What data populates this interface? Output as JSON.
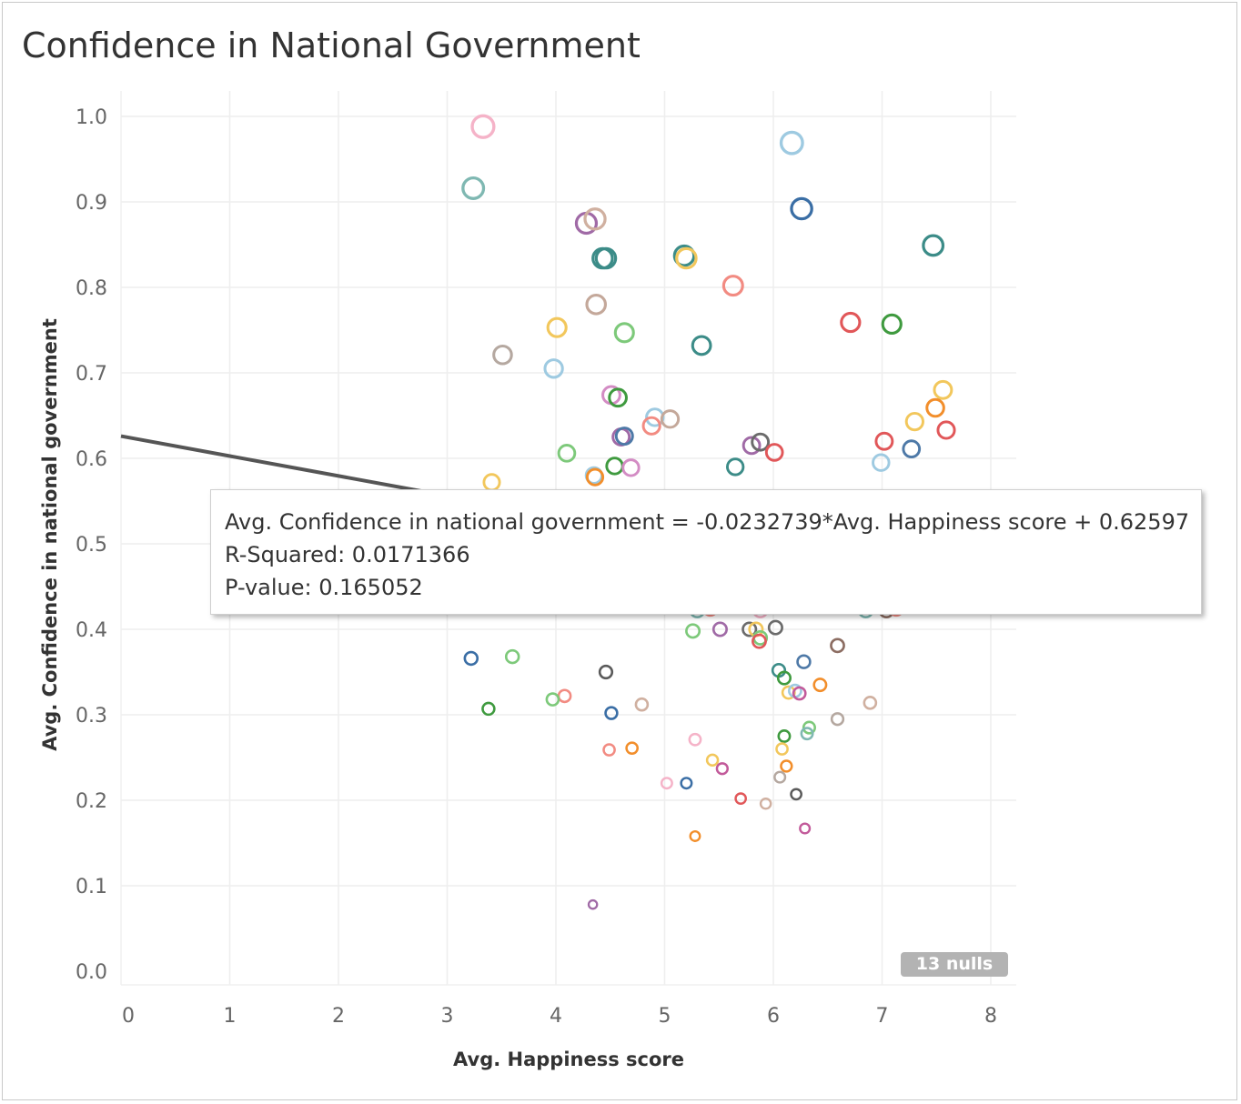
{
  "title": "Confidence in National Government",
  "chart_data": {
    "type": "scatter",
    "title": "Confidence in National Government",
    "xlabel": "Avg. Happiness score",
    "ylabel": "Avg. Confidence in national government",
    "xlim": [
      0,
      8
    ],
    "ylim": [
      0,
      1.0
    ],
    "x_ticks": [
      "0",
      "1",
      "2",
      "3",
      "4",
      "5",
      "6",
      "7",
      "8"
    ],
    "y_ticks": [
      "0.0",
      "0.1",
      "0.2",
      "0.3",
      "0.4",
      "0.5",
      "0.6",
      "0.7",
      "0.8",
      "0.9",
      "1.0"
    ],
    "grid": true,
    "trend_line": {
      "slope": -0.0232739,
      "intercept": 0.62597,
      "color": "#555555"
    },
    "tooltip_lines": [
      "Avg. Confidence in national government = -0.0232739*Avg. Happiness score + 0.62597",
      "R-Squared: 0.0171366",
      "P-value: 0.165052"
    ],
    "nulls_badge": "13 nulls",
    "points": [
      {
        "x": 3.33,
        "y": 0.988,
        "c": "#f5b3c8"
      },
      {
        "x": 3.24,
        "y": 0.916,
        "c": "#7fb8b2"
      },
      {
        "x": 4.28,
        "y": 0.875,
        "c": "#a06aa6"
      },
      {
        "x": 4.36,
        "y": 0.88,
        "c": "#d0b0a0"
      },
      {
        "x": 4.43,
        "y": 0.834,
        "c": "#3c8c88"
      },
      {
        "x": 4.46,
        "y": 0.834,
        "c": "#3c8c88"
      },
      {
        "x": 4.37,
        "y": 0.78,
        "c": "#c4a89a"
      },
      {
        "x": 4.01,
        "y": 0.753,
        "c": "#f2c75c"
      },
      {
        "x": 4.63,
        "y": 0.747,
        "c": "#7dc97a"
      },
      {
        "x": 3.51,
        "y": 0.721,
        "c": "#b5a8a0"
      },
      {
        "x": 3.98,
        "y": 0.705,
        "c": "#9ecae1"
      },
      {
        "x": 4.51,
        "y": 0.674,
        "c": "#d38cc4"
      },
      {
        "x": 4.57,
        "y": 0.671,
        "c": "#3f9a3f"
      },
      {
        "x": 4.6,
        "y": 0.625,
        "c": "#a06aa6"
      },
      {
        "x": 4.63,
        "y": 0.626,
        "c": "#4e79a7"
      },
      {
        "x": 4.1,
        "y": 0.606,
        "c": "#7dc97a"
      },
      {
        "x": 4.54,
        "y": 0.591,
        "c": "#3f9a3f"
      },
      {
        "x": 4.69,
        "y": 0.589,
        "c": "#d38cc4"
      },
      {
        "x": 4.35,
        "y": 0.58,
        "c": "#9ecae1"
      },
      {
        "x": 4.36,
        "y": 0.578,
        "c": "#f28e2b"
      },
      {
        "x": 3.41,
        "y": 0.572,
        "c": "#f2c75c"
      },
      {
        "x": 4.91,
        "y": 0.648,
        "c": "#9ecae1"
      },
      {
        "x": 4.88,
        "y": 0.638,
        "c": "#f28b82"
      },
      {
        "x": 5.05,
        "y": 0.646,
        "c": "#c4a89a"
      },
      {
        "x": 5.18,
        "y": 0.837,
        "c": "#3c8c88"
      },
      {
        "x": 5.2,
        "y": 0.834,
        "c": "#f2c75c"
      },
      {
        "x": 5.34,
        "y": 0.732,
        "c": "#3c8c88"
      },
      {
        "x": 5.63,
        "y": 0.802,
        "c": "#f28b82"
      },
      {
        "x": 5.65,
        "y": 0.59,
        "c": "#3c8c88"
      },
      {
        "x": 5.8,
        "y": 0.615,
        "c": "#a06aa6"
      },
      {
        "x": 5.88,
        "y": 0.619,
        "c": "#6b6b6b"
      },
      {
        "x": 6.01,
        "y": 0.607,
        "c": "#e15759"
      },
      {
        "x": 6.17,
        "y": 0.969,
        "c": "#9ecae1"
      },
      {
        "x": 6.26,
        "y": 0.892,
        "c": "#3a6ea5"
      },
      {
        "x": 6.71,
        "y": 0.759,
        "c": "#e15759"
      },
      {
        "x": 7.09,
        "y": 0.757,
        "c": "#3f9a3f"
      },
      {
        "x": 7.47,
        "y": 0.849,
        "c": "#3c8c88"
      },
      {
        "x": 7.56,
        "y": 0.68,
        "c": "#f2c75c"
      },
      {
        "x": 7.49,
        "y": 0.659,
        "c": "#f28e2b"
      },
      {
        "x": 7.3,
        "y": 0.643,
        "c": "#f2c75c"
      },
      {
        "x": 7.59,
        "y": 0.633,
        "c": "#e15759"
      },
      {
        "x": 7.02,
        "y": 0.62,
        "c": "#e15759"
      },
      {
        "x": 7.27,
        "y": 0.611,
        "c": "#4e79a7"
      },
      {
        "x": 6.99,
        "y": 0.595,
        "c": "#9ecae1"
      },
      {
        "x": 3.93,
        "y": 0.445,
        "c": "#b07a2a"
      },
      {
        "x": 4.71,
        "y": 0.437,
        "c": "#9ecae1"
      },
      {
        "x": 5.3,
        "y": 0.422,
        "c": "#7fb8b2"
      },
      {
        "x": 5.42,
        "y": 0.424,
        "c": "#f28b82"
      },
      {
        "x": 5.88,
        "y": 0.422,
        "c": "#f5b3c8"
      },
      {
        "x": 6.9,
        "y": 0.445,
        "c": "#e15759"
      },
      {
        "x": 6.85,
        "y": 0.422,
        "c": "#7fb8b2"
      },
      {
        "x": 7.04,
        "y": 0.422,
        "c": "#8c6d62"
      },
      {
        "x": 7.13,
        "y": 0.424,
        "c": "#f28b82"
      },
      {
        "x": 5.26,
        "y": 0.398,
        "c": "#7dc97a"
      },
      {
        "x": 5.51,
        "y": 0.4,
        "c": "#a06aa6"
      },
      {
        "x": 5.78,
        "y": 0.4,
        "c": "#6b6b6b"
      },
      {
        "x": 5.84,
        "y": 0.4,
        "c": "#f2c75c"
      },
      {
        "x": 5.88,
        "y": 0.39,
        "c": "#7dc97a"
      },
      {
        "x": 5.87,
        "y": 0.386,
        "c": "#e15759"
      },
      {
        "x": 6.02,
        "y": 0.402,
        "c": "#6b6b6b"
      },
      {
        "x": 6.59,
        "y": 0.381,
        "c": "#8c6d62"
      },
      {
        "x": 6.28,
        "y": 0.362,
        "c": "#4e79a7"
      },
      {
        "x": 6.05,
        "y": 0.352,
        "c": "#3c8c88"
      },
      {
        "x": 6.1,
        "y": 0.343,
        "c": "#3f9a3f"
      },
      {
        "x": 6.43,
        "y": 0.335,
        "c": "#f28e2b"
      },
      {
        "x": 6.14,
        "y": 0.326,
        "c": "#f2c75c"
      },
      {
        "x": 6.2,
        "y": 0.328,
        "c": "#9ecae1"
      },
      {
        "x": 6.24,
        "y": 0.325,
        "c": "#c25a9a"
      },
      {
        "x": 6.59,
        "y": 0.295,
        "c": "#b5a8a0"
      },
      {
        "x": 6.89,
        "y": 0.314,
        "c": "#d0b0a0"
      },
      {
        "x": 3.22,
        "y": 0.366,
        "c": "#3a6ea5"
      },
      {
        "x": 3.6,
        "y": 0.368,
        "c": "#7dc97a"
      },
      {
        "x": 4.46,
        "y": 0.35,
        "c": "#5a5a5a"
      },
      {
        "x": 4.08,
        "y": 0.322,
        "c": "#f28b82"
      },
      {
        "x": 3.97,
        "y": 0.318,
        "c": "#7dc97a"
      },
      {
        "x": 3.38,
        "y": 0.307,
        "c": "#3f9a3f"
      },
      {
        "x": 4.51,
        "y": 0.302,
        "c": "#3a6ea5"
      },
      {
        "x": 4.79,
        "y": 0.312,
        "c": "#d0b0a0"
      },
      {
        "x": 4.49,
        "y": 0.259,
        "c": "#f28b82"
      },
      {
        "x": 4.7,
        "y": 0.261,
        "c": "#f28e2b"
      },
      {
        "x": 5.28,
        "y": 0.271,
        "c": "#f5b3c8"
      },
      {
        "x": 5.44,
        "y": 0.247,
        "c": "#f2c75c"
      },
      {
        "x": 5.53,
        "y": 0.237,
        "c": "#c25a9a"
      },
      {
        "x": 5.02,
        "y": 0.22,
        "c": "#f5b3c8"
      },
      {
        "x": 5.2,
        "y": 0.22,
        "c": "#3a6ea5"
      },
      {
        "x": 6.1,
        "y": 0.275,
        "c": "#3f9a3f"
      },
      {
        "x": 6.33,
        "y": 0.285,
        "c": "#7dc97a"
      },
      {
        "x": 6.31,
        "y": 0.278,
        "c": "#7fb8b2"
      },
      {
        "x": 6.08,
        "y": 0.26,
        "c": "#f2c75c"
      },
      {
        "x": 6.12,
        "y": 0.24,
        "c": "#f28e2b"
      },
      {
        "x": 6.06,
        "y": 0.227,
        "c": "#b5a8a0"
      },
      {
        "x": 6.21,
        "y": 0.207,
        "c": "#5a5a5a"
      },
      {
        "x": 5.7,
        "y": 0.202,
        "c": "#e15759"
      },
      {
        "x": 5.93,
        "y": 0.196,
        "c": "#d0b0a0"
      },
      {
        "x": 5.28,
        "y": 0.158,
        "c": "#f28e2b"
      },
      {
        "x": 6.29,
        "y": 0.167,
        "c": "#c25a9a"
      },
      {
        "x": 4.34,
        "y": 0.078,
        "c": "#a06aa6"
      }
    ]
  }
}
